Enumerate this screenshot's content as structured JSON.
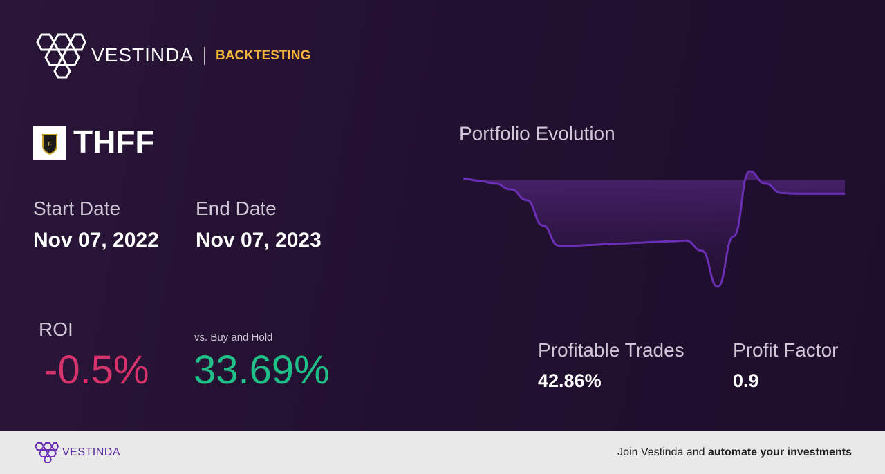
{
  "header": {
    "brand": "VESTINDA",
    "section": "BACKTESTING"
  },
  "ticker": "THFF",
  "start_date": {
    "label": "Start Date",
    "value": "Nov 07, 2022"
  },
  "end_date": {
    "label": "End Date",
    "value": "Nov 07, 2023"
  },
  "roi": {
    "label": "ROI",
    "value": "-0.5%"
  },
  "buy_hold": {
    "label": "vs. Buy and Hold",
    "value": "33.69%"
  },
  "profitable_trades": {
    "label": "Profitable Trades",
    "value": "42.86%"
  },
  "profit_factor": {
    "label": "Profit Factor",
    "value": "0.9"
  },
  "chart_data": {
    "type": "line",
    "title": "Portfolio Evolution",
    "color": "#6a2fb5",
    "values": [
      0.2,
      -0.1,
      -0.5,
      -1.3,
      -2.8,
      -6.3,
      -9.1,
      -9.1,
      -9.0,
      -8.9,
      -8.8,
      -8.7,
      -8.6,
      -8.5,
      -8.4,
      -9.8,
      -14.8,
      -7.8,
      1.2,
      -0.5,
      -1.8,
      -1.9,
      -1.9,
      -1.9,
      -1.9
    ]
  },
  "footer": {
    "brand": "VESTINDA",
    "cta_text": "Join Vestinda and ",
    "cta_bold": "automate your investments"
  }
}
